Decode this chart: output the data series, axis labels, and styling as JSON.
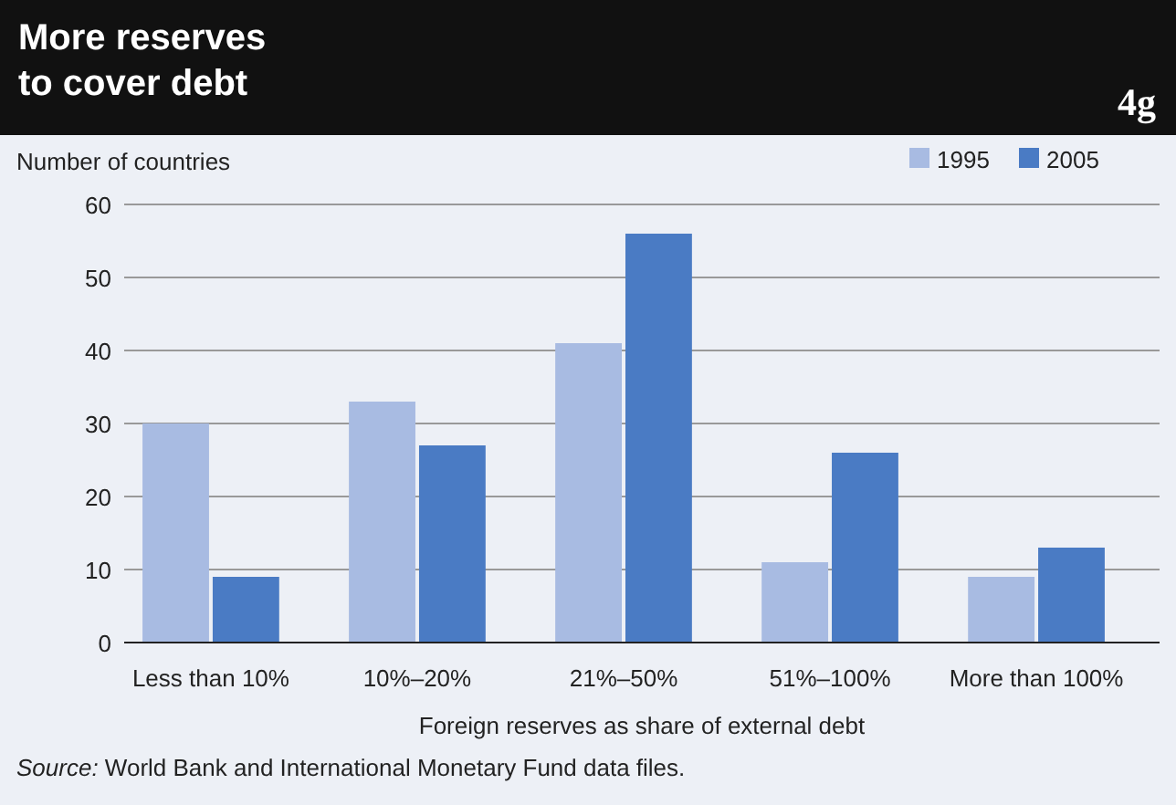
{
  "chart_data": {
    "type": "bar",
    "title": "More reserves\nto cover debt",
    "ylabel": "Number of countries",
    "xlabel": "Foreign reserves as share of external debt",
    "categories": [
      "Less than 10%",
      "10%–20%",
      "21%–50%",
      "51%–100%",
      "More than 100%"
    ],
    "series": [
      {
        "name": "1995",
        "color": "#a8bbe2",
        "values": [
          30,
          33,
          41,
          11,
          9
        ]
      },
      {
        "name": "2005",
        "color": "#4a7bc4",
        "values": [
          9,
          27,
          56,
          26,
          13
        ]
      }
    ],
    "ylim": [
      0,
      60
    ],
    "yticks": [
      0,
      10,
      20,
      30,
      40,
      50,
      60
    ],
    "grid": "y",
    "legend": "top right",
    "annotations": [
      "4g",
      "Source: World Bank and International Monetary Fund data files."
    ]
  }
}
